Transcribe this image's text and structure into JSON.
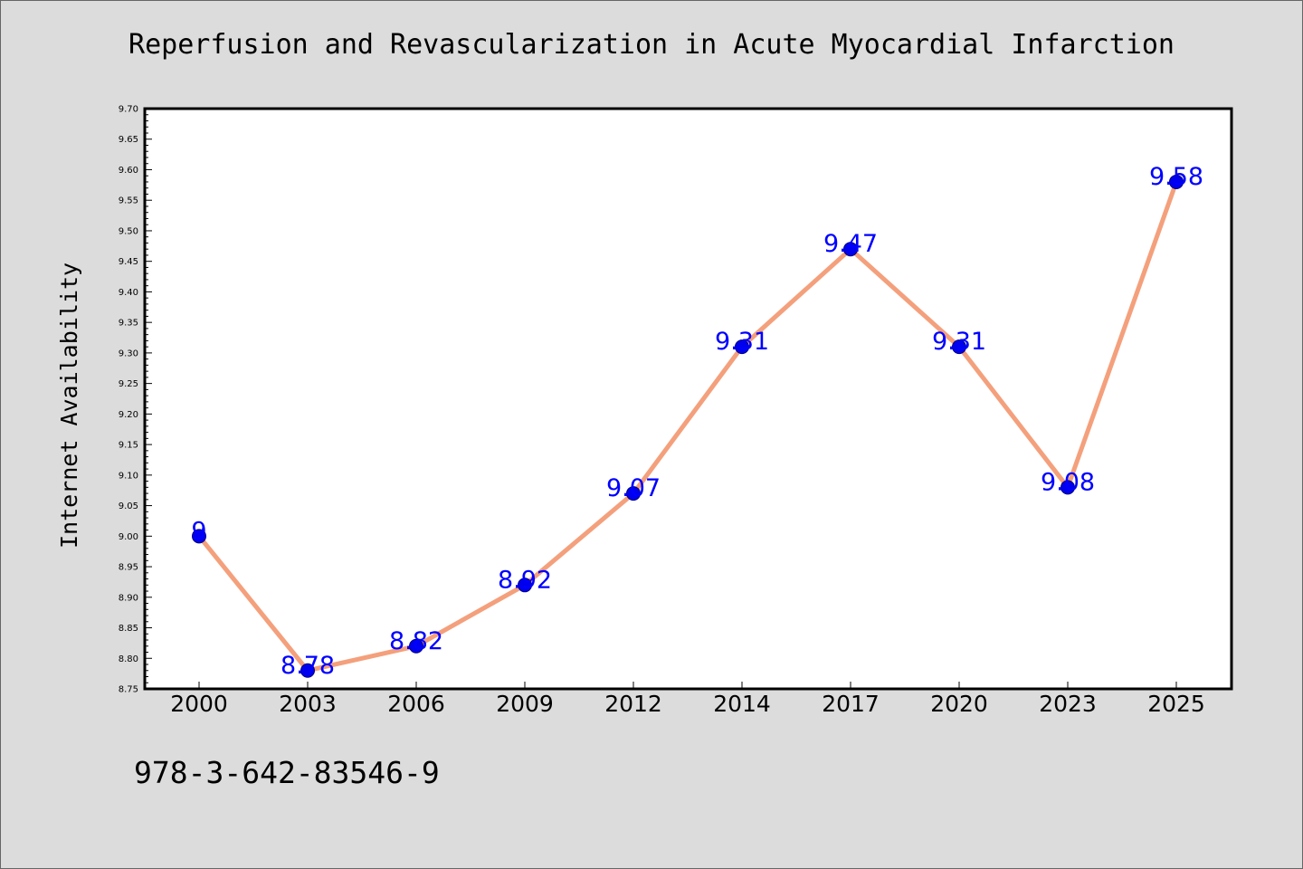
{
  "chart_data": {
    "type": "line",
    "title": "Reperfusion and Revascularization in Acute Myocardial Infarction",
    "xlabel": "",
    "ylabel": "Internet Availability",
    "categories": [
      "2000",
      "2003",
      "2006",
      "2009",
      "2012",
      "2014",
      "2017",
      "2020",
      "2023",
      "2025"
    ],
    "series": [
      {
        "values": [
          9.0,
          8.78,
          8.82,
          8.92,
          9.07,
          9.31,
          9.47,
          9.31,
          9.08,
          9.58
        ]
      }
    ],
    "data_labels": [
      "9",
      "8.78",
      "8.82",
      "8.92",
      "9.07",
      "9.31",
      "9.47",
      "9.31",
      "9.08",
      "9.58"
    ],
    "ylim": [
      8.75,
      9.7
    ],
    "yticks": [
      "8.75",
      "8.80",
      "8.85",
      "8.90",
      "8.95",
      "9.00",
      "9.05",
      "9.10",
      "9.15",
      "9.20",
      "9.25",
      "9.30",
      "9.35",
      "9.40",
      "9.45",
      "9.50",
      "9.55",
      "9.60",
      "9.65",
      "9.70"
    ],
    "grid": false,
    "legend": "none",
    "colors": {
      "line": "#f4a07c",
      "marker_fill": "#0000ee",
      "marker_edge": "#000080",
      "data_label": "#0000ff",
      "plot_background": "#ffffff",
      "figure_background": "#dcdcdc"
    }
  },
  "annotation": {
    "footer_text": "978-3-642-83546-9"
  }
}
